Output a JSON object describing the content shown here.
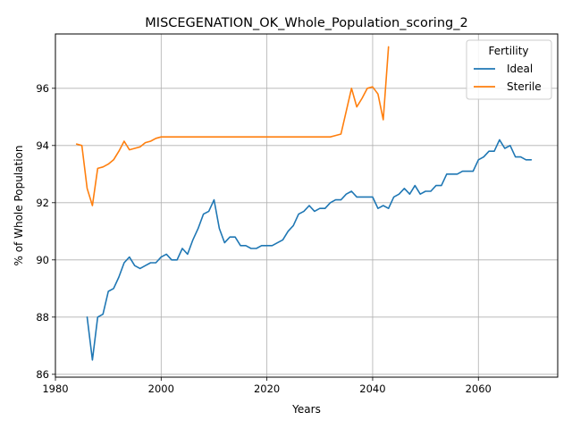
{
  "chart_data": {
    "type": "line",
    "title": "MISCEGENATION_OK_Whole_Population_scoring_2",
    "xlabel": "Years",
    "ylabel": "% of Whole Population",
    "xlim": [
      1980,
      2075
    ],
    "ylim": [
      85.9,
      97.9
    ],
    "xticks": [
      1980,
      2000,
      2020,
      2040,
      2060
    ],
    "yticks": [
      86,
      88,
      90,
      92,
      94,
      96
    ],
    "grid": true,
    "legend": {
      "title": "Fertility",
      "placement": "top-right"
    },
    "series": [
      {
        "name": "Ideal",
        "color": "#1f77b4",
        "x": [
          1986,
          1987,
          1988,
          1989,
          1990,
          1991,
          1992,
          1993,
          1994,
          1995,
          1996,
          1997,
          1998,
          1999,
          2000,
          2001,
          2002,
          2003,
          2004,
          2005,
          2006,
          2007,
          2008,
          2009,
          2010,
          2011,
          2012,
          2013,
          2014,
          2015,
          2016,
          2017,
          2018,
          2019,
          2020,
          2021,
          2022,
          2023,
          2024,
          2025,
          2026,
          2027,
          2028,
          2029,
          2030,
          2031,
          2032,
          2033,
          2034,
          2035,
          2036,
          2037,
          2038,
          2039,
          2040,
          2041,
          2042,
          2043,
          2044,
          2045,
          2046,
          2047,
          2048,
          2049,
          2050,
          2051,
          2052,
          2053,
          2054,
          2055,
          2056,
          2057,
          2058,
          2059,
          2060,
          2061,
          2062,
          2063,
          2064,
          2065,
          2066,
          2067,
          2068,
          2069,
          2070
        ],
        "y": [
          88.0,
          86.5,
          88.0,
          88.1,
          88.9,
          89.0,
          89.4,
          89.9,
          90.1,
          89.8,
          89.7,
          89.8,
          89.9,
          89.9,
          90.1,
          90.2,
          90.0,
          90.0,
          90.4,
          90.2,
          90.7,
          91.1,
          91.6,
          91.7,
          92.1,
          91.1,
          90.6,
          90.8,
          90.8,
          90.5,
          90.5,
          90.4,
          90.4,
          90.5,
          90.5,
          90.5,
          90.6,
          90.7,
          91.0,
          91.2,
          91.6,
          91.7,
          91.9,
          91.7,
          91.8,
          91.8,
          92.0,
          92.1,
          92.1,
          92.3,
          92.4,
          92.2,
          92.2,
          92.2,
          92.2,
          91.8,
          91.9,
          91.8,
          92.2,
          92.3,
          92.5,
          92.3,
          92.6,
          92.3,
          92.4,
          92.4,
          92.6,
          92.6,
          93.0,
          93.0,
          93.0,
          93.1,
          93.1,
          93.1,
          93.5,
          93.6,
          93.8,
          93.8,
          94.2,
          93.9,
          94.0,
          93.6,
          93.6,
          93.5,
          93.5
        ]
      },
      {
        "name": "Sterile",
        "color": "#ff7f0e",
        "x": [
          1984,
          1985,
          1986,
          1987,
          1988,
          1989,
          1990,
          1991,
          1992,
          1993,
          1994,
          1995,
          1996,
          1997,
          1998,
          1999,
          2000,
          2001,
          2002,
          2003,
          2004,
          2005,
          2006,
          2007,
          2008,
          2009,
          2010,
          2011,
          2012,
          2013,
          2014,
          2015,
          2016,
          2017,
          2018,
          2019,
          2020,
          2021,
          2022,
          2023,
          2024,
          2025,
          2026,
          2027,
          2028,
          2029,
          2030,
          2031,
          2032,
          2033,
          2034,
          2035,
          2036,
          2037,
          2038,
          2039,
          2040,
          2041,
          2042,
          2043
        ],
        "y": [
          94.05,
          94.0,
          92.5,
          91.9,
          93.2,
          93.25,
          93.35,
          93.5,
          93.8,
          94.15,
          93.85,
          93.9,
          93.95,
          94.1,
          94.15,
          94.25,
          94.3,
          94.3,
          94.3,
          94.3,
          94.3,
          94.3,
          94.3,
          94.3,
          94.3,
          94.3,
          94.3,
          94.3,
          94.3,
          94.3,
          94.3,
          94.3,
          94.3,
          94.3,
          94.3,
          94.3,
          94.3,
          94.3,
          94.3,
          94.3,
          94.3,
          94.3,
          94.3,
          94.3,
          94.3,
          94.3,
          94.3,
          94.3,
          94.3,
          94.35,
          94.4,
          95.2,
          96.0,
          95.35,
          95.65,
          96.0,
          96.05,
          95.8,
          94.9,
          97.45
        ]
      }
    ]
  }
}
